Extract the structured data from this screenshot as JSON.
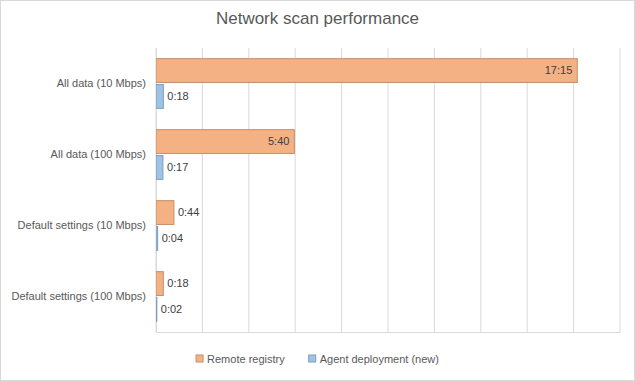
{
  "chart_data": {
    "type": "bar",
    "title": "Network scan performance",
    "orientation": "horizontal",
    "categories": [
      "All data (10 Mbps)",
      "All data (100 Mbps)",
      "Default settings (10 Mbps)",
      "Default settings (100 Mbps)"
    ],
    "series": [
      {
        "name": "Remote registry",
        "color": "#f4b183",
        "values": [
          1035,
          340,
          44,
          18
        ],
        "value_labels": [
          "17:15",
          "5:40",
          "0:44",
          "0:18"
        ]
      },
      {
        "name": "Agent deployment (new)",
        "color": "#9dc3e6",
        "values": [
          18,
          17,
          4,
          2
        ],
        "value_labels": [
          "0:18",
          "0:17",
          "0:04",
          "0:02"
        ]
      }
    ],
    "xlim": [
      0,
      1140
    ],
    "xticks": [
      0,
      114,
      228,
      342,
      456,
      570,
      684,
      798,
      912,
      1026,
      1140
    ],
    "grid": true,
    "legend": "bottom",
    "data_labels": true,
    "tick_labels": "y"
  }
}
